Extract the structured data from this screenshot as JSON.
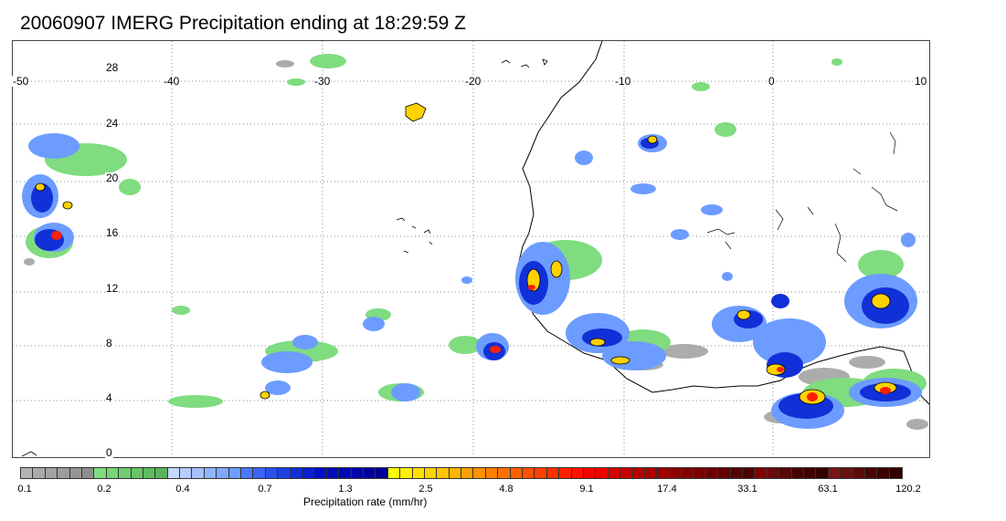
{
  "title": "20060907 IMERG Precipitation ending at 18:29:59 Z",
  "map": {
    "lon_labels": [
      "-50",
      "-40",
      "-30",
      "-20",
      "-10",
      "0",
      "10"
    ],
    "lat_labels": [
      "28",
      "24",
      "20",
      "16",
      "12",
      "8",
      "4",
      "0"
    ],
    "extent": {
      "lon_min": -50,
      "lon_max": 10,
      "lat_min": 0,
      "lat_max": 29
    },
    "grid": "dotted"
  },
  "colorbar": {
    "label": "Precipitation rate (mm/hr)",
    "ticks": [
      "0.1",
      "0.2",
      "0.4",
      "0.7",
      "1.3",
      "2.5",
      "4.8",
      "9.1",
      "17.4",
      "33.1",
      "63.1",
      "120.2"
    ],
    "colors": [
      "#b3b3b3",
      "#aaaaaa",
      "#a3a3a3",
      "#9c9c9c",
      "#959595",
      "#8e8e8e",
      "#7fdc7f",
      "#77d477",
      "#6fcc6f",
      "#67c467",
      "#5fbc5f",
      "#57b457",
      "#c6d8ff",
      "#b4ccff",
      "#a2c0ff",
      "#90b4ff",
      "#7ea8ff",
      "#6c9cff",
      "#4a78ff",
      "#3a64f5",
      "#2a50eb",
      "#1e40e1",
      "#1230d7",
      "#0a20cd",
      "#0010c8",
      "#000cbe",
      "#0008b4",
      "#0004aa",
      "#0000a0",
      "#000096",
      "#ffff00",
      "#fff000",
      "#ffe100",
      "#ffd200",
      "#ffc300",
      "#ffb400",
      "#ffa000",
      "#ff9000",
      "#ff8000",
      "#ff7000",
      "#ff6000",
      "#ff5000",
      "#ff4000",
      "#ff3000",
      "#ff2000",
      "#ff1000",
      "#f50000",
      "#eb0000",
      "#d60000",
      "#c80000",
      "#ba0000",
      "#ac0000",
      "#9e0000",
      "#900000",
      "#820000",
      "#780000",
      "#6e0000",
      "#640000",
      "#5a0000",
      "#500000",
      "#800000",
      "#6a0a0a",
      "#5a0505",
      "#4a0000",
      "#3e0000",
      "#340000",
      "#7a1414",
      "#6b0f0f",
      "#5c0a0a",
      "#4d0505",
      "#3e0000",
      "#300000"
    ]
  },
  "legend_colors": {
    "coastline": "#000000",
    "light": "#a8a8a8",
    "moderate_green": "#6fcc6f",
    "blue": "#1e40e1",
    "yellow": "#ffd200",
    "red": "#ff2000"
  }
}
